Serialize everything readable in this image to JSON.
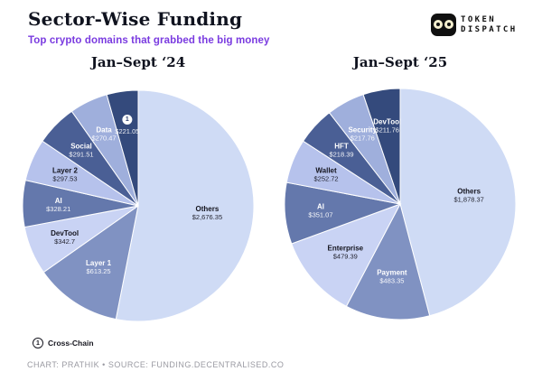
{
  "header": {
    "title": "Sector-Wise Funding",
    "subtitle": "Top crypto domains that grabbed the big money",
    "accent_color": "#7a3be0",
    "logo": {
      "line1": "TOKEN",
      "line2": "DISPATCH"
    }
  },
  "footnote": {
    "marker": "1",
    "label": "Cross-Chain"
  },
  "credit": "CHART: PRATHIK • SOURCE: FUNDING.DECENTRALISED.CO",
  "chart_data": [
    {
      "type": "pie",
      "title": "Jan–Sept ‘24",
      "direction": "clockwise",
      "start_angle_deg": 0,
      "legend_position": "labels-inside-slices",
      "slices": [
        {
          "label": "Others",
          "value": 2676.35,
          "display": "$2,676.35",
          "color": "#cfdbf5"
        },
        {
          "label": "Layer 1",
          "value": 613.25,
          "display": "$613.25",
          "color": "#8092c2"
        },
        {
          "label": "DevTool",
          "value": 342.7,
          "display": "$342.7",
          "color": "#c9d3f4"
        },
        {
          "label": "AI",
          "value": 328.21,
          "display": "$328.21",
          "color": "#6478ac"
        },
        {
          "label": "Layer 2",
          "value": 297.53,
          "display": "$297.53",
          "color": "#b6c2ec"
        },
        {
          "label": "Social",
          "value": 291.51,
          "display": "$291.51",
          "color": "#4a5f95"
        },
        {
          "label": "Data",
          "value": 270.47,
          "display": "$270.47",
          "color": "#9fafdc"
        },
        {
          "label": "Cross-Chain",
          "value": 221.05,
          "display": "$221.05",
          "color": "#344a7c",
          "badge": "1"
        }
      ]
    },
    {
      "type": "pie",
      "title": "Jan–Sept ‘25",
      "direction": "clockwise",
      "start_angle_deg": 0,
      "legend_position": "labels-inside-slices",
      "slices": [
        {
          "label": "Others",
          "value": 1878.37,
          "display": "$1,878.37",
          "color": "#cfdbf5"
        },
        {
          "label": "Payment",
          "value": 483.35,
          "display": "$483.35",
          "color": "#8092c2"
        },
        {
          "label": "Enterprise",
          "value": 479.39,
          "display": "$479.39",
          "color": "#c9d3f4"
        },
        {
          "label": "AI",
          "value": 351.07,
          "display": "$351.07",
          "color": "#6478ac"
        },
        {
          "label": "Wallet",
          "value": 252.72,
          "display": "$252.72",
          "color": "#b6c2ec"
        },
        {
          "label": "HFT",
          "value": 218.39,
          "display": "$218.39",
          "color": "#4a5f95"
        },
        {
          "label": "Security",
          "value": 217.76,
          "display": "$217.76",
          "color": "#9fafdc"
        },
        {
          "label": "DevTool",
          "value": 211.76,
          "display": "$211.76",
          "color": "#344a7c"
        }
      ]
    }
  ]
}
